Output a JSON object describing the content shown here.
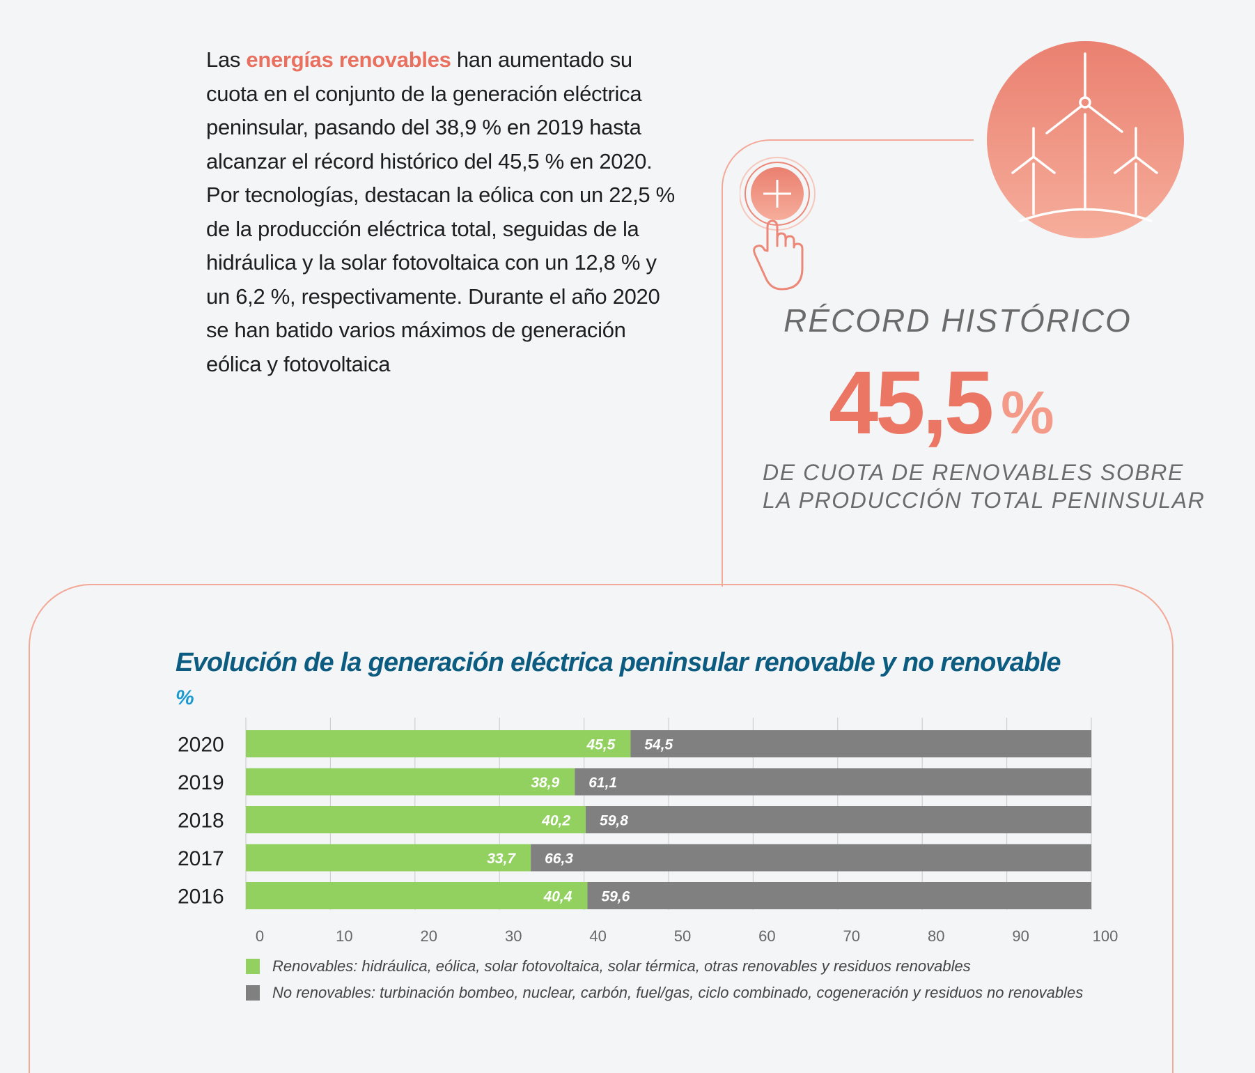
{
  "intro": {
    "prefix": "Las ",
    "highlight": "energías renovables",
    "suffix": " han aumentado su cuota en el conjunto de la generación eléctrica peninsular, pasando del 38,9 % en 2019 hasta alcanzar el récord histórico del 45,5 % en 2020. Por tecnologías, destacan la eólica con un 22,5 % de la producción eléctrica total, seguidas de la hidráulica y la solar fotovoltaica con un 12,8 % y un 6,2 %, respectivamente. Durante el año 2020 se han batido varios máximos de generación eólica y fotovoltaica"
  },
  "colors": {
    "accent": "#ec7664",
    "frame": "#f3a898",
    "title": "#0c5b80",
    "unit": "#1a9ad0",
    "renewable": "#92d160",
    "non_renewable": "#808080",
    "text_grey": "#6b6b6b"
  },
  "icons": {
    "wind_turbines": "wind-turbines-icon",
    "press_button": "press-button-icon"
  },
  "record": {
    "label": "RÉCORD HISTÓRICO",
    "value": "45,5",
    "unit": "%",
    "desc_line1": "DE CUOTA DE RENOVABLES SOBRE",
    "desc_line2": "LA PRODUCCIÓN TOTAL PENINSULAR"
  },
  "chart_data": {
    "type": "bar",
    "orientation": "horizontal",
    "stacked": true,
    "title": "Evolución de la generación eléctrica peninsular renovable y no renovable",
    "unit_label": "%",
    "xlabel": "",
    "ylabel": "",
    "categories": [
      "2020",
      "2019",
      "2018",
      "2017",
      "2016"
    ],
    "series": [
      {
        "name": "Renovables: hidráulica, eólica, solar fotovoltaica, solar térmica, otras renovables y residuos renovables",
        "values": [
          45.5,
          38.9,
          40.2,
          33.7,
          40.4
        ],
        "labels": [
          "45,5",
          "38,9",
          "40,2",
          "33,7",
          "40,4"
        ]
      },
      {
        "name": "No renovables: turbinación bombeo, nuclear, carbón, fuel/gas, ciclo combinado, cogeneración y residuos no renovables",
        "values": [
          54.5,
          61.1,
          59.8,
          66.3,
          59.6
        ],
        "labels": [
          "54,5",
          "61,1",
          "59,8",
          "66,3",
          "59,6"
        ]
      }
    ],
    "xlim": [
      0,
      100
    ],
    "xticks": [
      "0",
      "10",
      "20",
      "30",
      "40",
      "50",
      "60",
      "70",
      "80",
      "90",
      "100"
    ],
    "grid": true,
    "legend_position": "bottom"
  }
}
